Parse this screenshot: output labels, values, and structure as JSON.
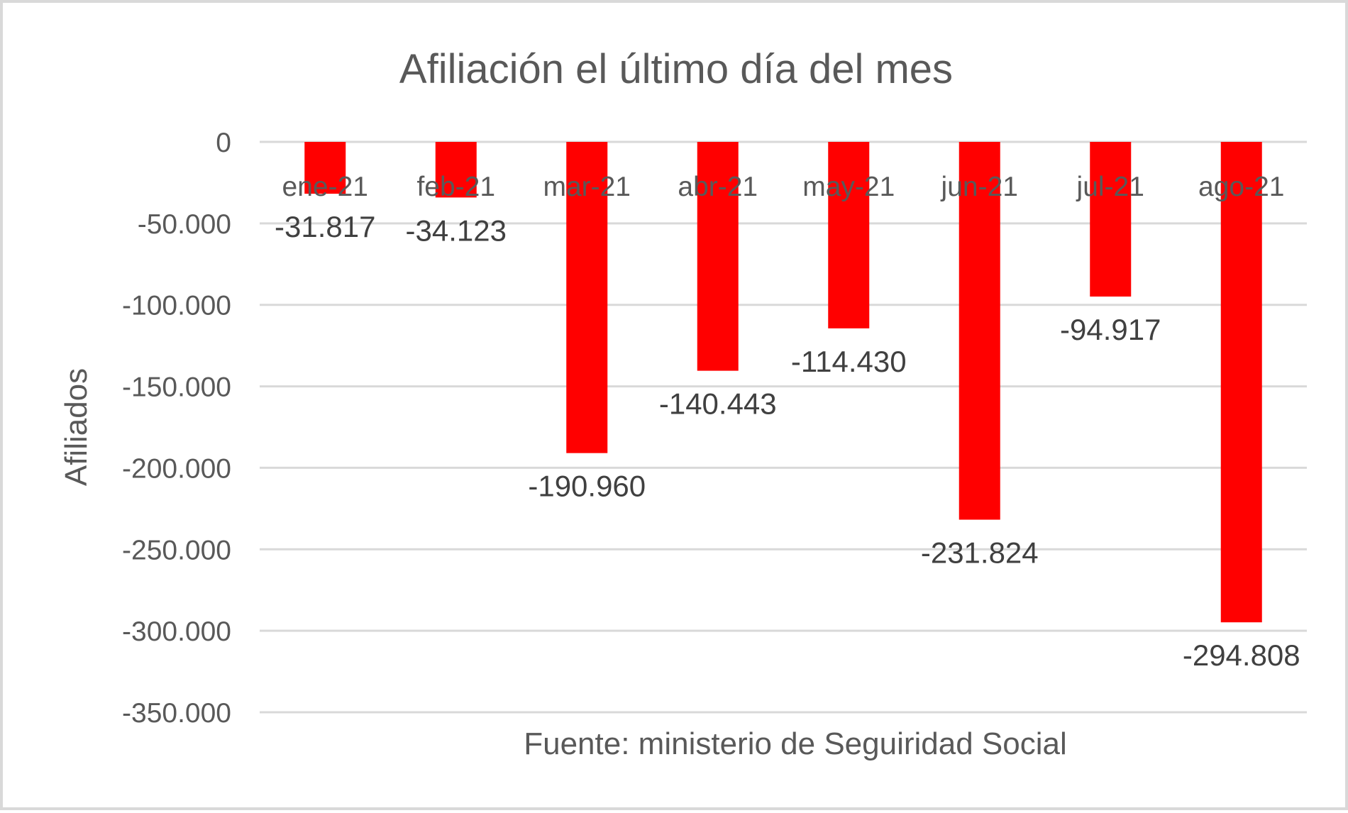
{
  "chart_data": {
    "type": "bar",
    "title": "Afiliación el último día del mes",
    "ylabel": "Afiliados",
    "xlabel": "",
    "source": "Fuente: ministerio de Seguiridad Social",
    "categories": [
      "ene-21",
      "feb-21",
      "mar-21",
      "abr-21",
      "may-21",
      "jun-21",
      "jul-21",
      "ago-21"
    ],
    "values": [
      -31817,
      -34123,
      -190960,
      -140443,
      -114430,
      -231824,
      -94917,
      -294808
    ],
    "value_labels": [
      "-31.817",
      "-34.123",
      "-190.960",
      "-140.443",
      "-114.430",
      "-231.824",
      "-94.917",
      "-294.808"
    ],
    "ylim": [
      -350000,
      0
    ],
    "yticks": [
      0,
      -50000,
      -100000,
      -150000,
      -200000,
      -250000,
      -300000,
      -350000
    ],
    "ytick_labels": [
      "0",
      "-50.000",
      "-100.000",
      "-150.000",
      "-200.000",
      "-250.000",
      "-300.000",
      "-350.000"
    ],
    "grid": true,
    "legend": "none",
    "bar_color": "#ff0000"
  }
}
